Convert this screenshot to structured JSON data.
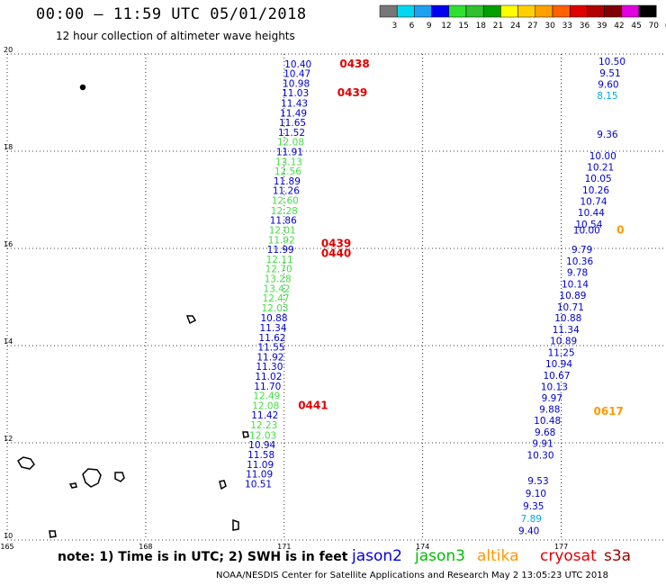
{
  "header": {
    "title": "00:00 – 11:59 UTC 05/01/2018",
    "subtitle": "12 hour collection of altimeter wave heights"
  },
  "colorbar": {
    "labels": [
      "3",
      "6",
      "9",
      "12",
      "15",
      "18",
      "21",
      "24",
      "27",
      "30",
      "33",
      "36",
      "39",
      "42",
      "45",
      "70",
      "(ft)"
    ],
    "colors": [
      "#777777",
      "#00d8f0",
      "#1ea0f0",
      "#0000f0",
      "#30e030",
      "#30c030",
      "#00a000",
      "#ffff00",
      "#ffd000",
      "#ffa000",
      "#ff6000",
      "#e00000",
      "#b00000",
      "#800000",
      "#e000e0",
      "#000000"
    ]
  },
  "axes": {
    "x_ticks": [
      "165",
      "168",
      "171",
      "174",
      "177"
    ],
    "y_ticks": [
      "20",
      "18",
      "16",
      "14",
      "12",
      "10"
    ]
  },
  "chart_data": {
    "type": "scatter",
    "x_unit": "degrees east longitude",
    "y_unit": "degrees north latitude",
    "xlim": [
      165,
      178.3
    ],
    "ylim": [
      10,
      20
    ],
    "grid": true,
    "tracks": [
      {
        "satellite": "jason2 / jason3",
        "points": [
          {
            "lat": 19.8,
            "lon": 171.3,
            "swh": "10.40",
            "sat": "jason2"
          },
          {
            "lat": 19.6,
            "lon": 171.28,
            "swh": "10.47",
            "sat": "jason2"
          },
          {
            "lat": 19.4,
            "lon": 171.26,
            "swh": "10.98",
            "sat": "jason2"
          },
          {
            "lat": 19.2,
            "lon": 171.24,
            "swh": "11.03",
            "sat": "jason2"
          },
          {
            "lat": 18.99,
            "lon": 171.22,
            "swh": "11.43",
            "sat": "jason2"
          },
          {
            "lat": 18.79,
            "lon": 171.2,
            "swh": "11.49",
            "sat": "jason2"
          },
          {
            "lat": 18.59,
            "lon": 171.18,
            "swh": "11.65",
            "sat": "jason2"
          },
          {
            "lat": 18.39,
            "lon": 171.16,
            "swh": "11.52",
            "sat": "jason2"
          },
          {
            "lat": 18.19,
            "lon": 171.14,
            "swh": "12.08",
            "sat": "jason3"
          },
          {
            "lat": 17.99,
            "lon": 171.12,
            "swh": "11.91",
            "sat": "jason2"
          },
          {
            "lat": 17.79,
            "lon": 171.1,
            "swh": "13.13",
            "sat": "jason3"
          },
          {
            "lat": 17.59,
            "lon": 171.08,
            "swh": "12.56",
            "sat": "jason3"
          },
          {
            "lat": 17.39,
            "lon": 171.06,
            "swh": "11.89",
            "sat": "jason2"
          },
          {
            "lat": 17.19,
            "lon": 171.04,
            "swh": "11.26",
            "sat": "jason2"
          },
          {
            "lat": 16.99,
            "lon": 171.02,
            "swh": "12.60",
            "sat": "jason3"
          },
          {
            "lat": 16.78,
            "lon": 171.0,
            "swh": "12.28",
            "sat": "jason3"
          },
          {
            "lat": 16.58,
            "lon": 170.98,
            "swh": "11.86",
            "sat": "jason2"
          },
          {
            "lat": 16.38,
            "lon": 170.96,
            "swh": "12.01",
            "sat": "jason3"
          },
          {
            "lat": 16.18,
            "lon": 170.94,
            "swh": "11.92",
            "sat": "jason3"
          },
          {
            "lat": 15.98,
            "lon": 170.92,
            "swh": "11.99",
            "sat": "jason2"
          },
          {
            "lat": 15.78,
            "lon": 170.9,
            "swh": "12.11",
            "sat": "jason3"
          },
          {
            "lat": 15.58,
            "lon": 170.88,
            "swh": "12.70",
            "sat": "jason3"
          },
          {
            "lat": 15.38,
            "lon": 170.86,
            "swh": "13.28",
            "sat": "jason3"
          },
          {
            "lat": 15.18,
            "lon": 170.84,
            "swh": "13.42",
            "sat": "jason3"
          },
          {
            "lat": 14.98,
            "lon": 170.82,
            "swh": "12.47",
            "sat": "jason3"
          },
          {
            "lat": 14.78,
            "lon": 170.8,
            "swh": "12.03",
            "sat": "jason3"
          },
          {
            "lat": 14.57,
            "lon": 170.78,
            "swh": "10.88",
            "sat": "jason2"
          },
          {
            "lat": 14.37,
            "lon": 170.76,
            "swh": "11.34",
            "sat": "jason2"
          },
          {
            "lat": 14.17,
            "lon": 170.74,
            "swh": "11.62",
            "sat": "jason2"
          },
          {
            "lat": 13.97,
            "lon": 170.72,
            "swh": "11.55",
            "sat": "jason2"
          },
          {
            "lat": 13.77,
            "lon": 170.7,
            "swh": "11.92",
            "sat": "jason2"
          },
          {
            "lat": 13.57,
            "lon": 170.68,
            "swh": "11.30",
            "sat": "jason2"
          },
          {
            "lat": 13.37,
            "lon": 170.66,
            "swh": "11.02",
            "sat": "jason2"
          },
          {
            "lat": 13.17,
            "lon": 170.64,
            "swh": "11.70",
            "sat": "jason2"
          },
          {
            "lat": 12.97,
            "lon": 170.62,
            "swh": "12.49",
            "sat": "jason3"
          },
          {
            "lat": 12.77,
            "lon": 170.6,
            "swh": "12.08",
            "sat": "jason3"
          },
          {
            "lat": 12.57,
            "lon": 170.58,
            "swh": "11.42",
            "sat": "jason2"
          },
          {
            "lat": 12.37,
            "lon": 170.56,
            "swh": "12.23",
            "sat": "jason3"
          },
          {
            "lat": 12.16,
            "lon": 170.54,
            "swh": "12.03",
            "sat": "jason3"
          },
          {
            "lat": 11.96,
            "lon": 170.52,
            "swh": "10.94",
            "sat": "jason2"
          },
          {
            "lat": 11.76,
            "lon": 170.5,
            "swh": "11.58",
            "sat": "jason2"
          },
          {
            "lat": 11.56,
            "lon": 170.48,
            "swh": "11.09",
            "sat": "jason2"
          },
          {
            "lat": 11.36,
            "lon": 170.46,
            "swh": "11.09",
            "sat": "jason2"
          },
          {
            "lat": 11.16,
            "lon": 170.44,
            "swh": "10.51",
            "sat": "jason2"
          }
        ]
      },
      {
        "satellite": "jason2 (eastern pass)",
        "points": [
          {
            "lat": 19.85,
            "lon": 178.1,
            "swh": "10.50",
            "sat": "jason2"
          },
          {
            "lat": 19.61,
            "lon": 178.06,
            "swh": "9.51",
            "sat": "jason2"
          },
          {
            "lat": 19.38,
            "lon": 178.02,
            "swh": "9.60",
            "sat": "jason2"
          },
          {
            "lat": 19.15,
            "lon": 178.0,
            "swh": "8.15",
            "sat": "jason2-light"
          },
          {
            "lat": 18.35,
            "lon": 178.0,
            "swh": "9.36",
            "sat": "jason2"
          },
          {
            "lat": 17.91,
            "lon": 177.9,
            "swh": "10.00",
            "sat": "jason2"
          },
          {
            "lat": 17.68,
            "lon": 177.85,
            "swh": "10.21",
            "sat": "jason2"
          },
          {
            "lat": 17.44,
            "lon": 177.8,
            "swh": "10.05",
            "sat": "jason2"
          },
          {
            "lat": 17.2,
            "lon": 177.75,
            "swh": "10.26",
            "sat": "jason2"
          },
          {
            "lat": 16.97,
            "lon": 177.7,
            "swh": "10.74",
            "sat": "jason2"
          },
          {
            "lat": 16.74,
            "lon": 177.65,
            "swh": "10.44",
            "sat": "jason2"
          },
          {
            "lat": 16.5,
            "lon": 177.6,
            "swh": "10.54",
            "sat": "jason2"
          },
          {
            "lat": 16.38,
            "lon": 177.55,
            "swh": "10.00",
            "sat": "jason2"
          },
          {
            "lat": 15.98,
            "lon": 177.45,
            "swh": "9.79",
            "sat": "jason2"
          },
          {
            "lat": 15.74,
            "lon": 177.4,
            "swh": "10.36",
            "sat": "jason2"
          },
          {
            "lat": 15.51,
            "lon": 177.35,
            "swh": "9.78",
            "sat": "jason2"
          },
          {
            "lat": 15.27,
            "lon": 177.3,
            "swh": "10.14",
            "sat": "jason2"
          },
          {
            "lat": 15.04,
            "lon": 177.25,
            "swh": "10.89",
            "sat": "jason2"
          },
          {
            "lat": 14.8,
            "lon": 177.2,
            "swh": "10.71",
            "sat": "jason2"
          },
          {
            "lat": 14.57,
            "lon": 177.15,
            "swh": "10.88",
            "sat": "jason2"
          },
          {
            "lat": 14.33,
            "lon": 177.1,
            "swh": "11.34",
            "sat": "jason2"
          },
          {
            "lat": 14.1,
            "lon": 177.05,
            "swh": "10.89",
            "sat": "jason2"
          },
          {
            "lat": 13.86,
            "lon": 177.0,
            "swh": "11.25",
            "sat": "jason2"
          },
          {
            "lat": 13.63,
            "lon": 176.95,
            "swh": "10.94",
            "sat": "jason2"
          },
          {
            "lat": 13.39,
            "lon": 176.9,
            "swh": "10.67",
            "sat": "jason2"
          },
          {
            "lat": 13.16,
            "lon": 176.85,
            "swh": "10.13",
            "sat": "jason2"
          },
          {
            "lat": 12.93,
            "lon": 176.8,
            "swh": "9.97",
            "sat": "jason2"
          },
          {
            "lat": 12.69,
            "lon": 176.75,
            "swh": "9.88",
            "sat": "jason2"
          },
          {
            "lat": 12.46,
            "lon": 176.7,
            "swh": "10.48",
            "sat": "jason2"
          },
          {
            "lat": 12.22,
            "lon": 176.65,
            "swh": "9.68",
            "sat": "jason2"
          },
          {
            "lat": 11.99,
            "lon": 176.6,
            "swh": "9.91",
            "sat": "jason2"
          },
          {
            "lat": 11.75,
            "lon": 176.55,
            "swh": "10.30",
            "sat": "jason2"
          },
          {
            "lat": 11.22,
            "lon": 176.5,
            "swh": "9.53",
            "sat": "jason2"
          },
          {
            "lat": 10.96,
            "lon": 176.45,
            "swh": "9.10",
            "sat": "jason2"
          },
          {
            "lat": 10.7,
            "lon": 176.4,
            "swh": "9.35",
            "sat": "jason2"
          },
          {
            "lat": 10.44,
            "lon": 176.35,
            "swh": "7.89",
            "sat": "jason2-light"
          },
          {
            "lat": 10.19,
            "lon": 176.3,
            "swh": "9.40",
            "sat": "jason2"
          }
        ]
      }
    ],
    "time_labels": [
      {
        "text": "0438",
        "lat": 19.8,
        "lon": 172.2,
        "color": "#e00000"
      },
      {
        "text": "0439",
        "lat": 19.2,
        "lon": 172.15,
        "color": "#e00000"
      },
      {
        "text": "0439",
        "lat": 16.1,
        "lon": 171.8,
        "color": "#e00000"
      },
      {
        "text": "0440",
        "lat": 15.9,
        "lon": 171.8,
        "color": "#e00000"
      },
      {
        "text": "0441",
        "lat": 12.77,
        "lon": 171.3,
        "color": "#e00000"
      },
      {
        "text": "0617",
        "lat": 12.65,
        "lon": 177.7,
        "color": "#ff9900"
      }
    ],
    "partial_labels": [
      {
        "text": "0",
        "lat": 16.38,
        "lon": 178.2,
        "color": "#ff9900"
      }
    ],
    "legend": [
      {
        "name": "jason2",
        "color": "#0000e0"
      },
      {
        "name": "jason3",
        "color": "#00c000"
      },
      {
        "name": "altika",
        "color": "#ff9900"
      },
      {
        "name": "cryosat",
        "color": "#e00000"
      },
      {
        "name": "s3a",
        "color": "#a00000"
      }
    ]
  },
  "footer": {
    "note": "note:  1) Time is in UTC;  2) SWH is in feet",
    "credits": "NOAA/NESDIS Center for Satellite Applications and Research     May  2 13:05:23 UTC 2018"
  }
}
